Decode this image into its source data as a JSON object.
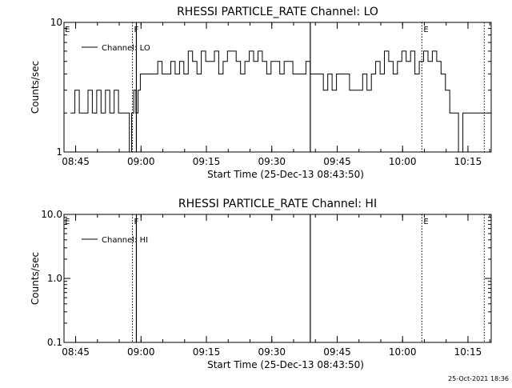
{
  "footer": {
    "timestamp": "25-Oct-2021 18:36"
  },
  "chart_data": [
    {
      "type": "line",
      "title": "RHESSI PARTICLE_RATE Channel: LO",
      "xlabel": "Start Time (25-Dec-13 08:43:50)",
      "ylabel": "Counts/sec",
      "yscale": "log",
      "ylim": [
        1,
        10
      ],
      "xlim_minutes": [
        -1.5,
        96.5
      ],
      "x_tick_labels": [
        "08:45",
        "09:00",
        "09:15",
        "09:30",
        "09:45",
        "10:00",
        "10:15"
      ],
      "x_tick_minutes": [
        1.17,
        16.17,
        31.17,
        46.17,
        61.17,
        76.17,
        91.17
      ],
      "y_tick_labels": [
        "1",
        "10"
      ],
      "y_tick_values": [
        1,
        10
      ],
      "legend": {
        "label": "Channel: LO",
        "position": "top-left"
      },
      "vlines": [
        {
          "x": 14.2,
          "style": "dotted",
          "label": "F"
        },
        {
          "x": 15.1,
          "style": "solid",
          "label": ""
        },
        {
          "x": 55.0,
          "style": "solid",
          "label": ""
        },
        {
          "x": 80.6,
          "style": "dotted",
          "label": "E"
        },
        {
          "x": 94.9,
          "style": "dotted",
          "label": ""
        }
      ],
      "corner_labels": [
        {
          "x": -1.3,
          "label": "E"
        }
      ],
      "series": [
        {
          "name": "Channel: LO",
          "x": [
            0,
            1,
            2,
            3,
            4,
            5,
            6,
            7,
            8,
            9,
            10,
            11,
            12,
            12.5,
            13,
            13.5,
            14,
            14.5,
            15,
            15.5,
            16,
            17,
            18,
            19,
            20,
            21,
            22,
            23,
            24,
            25,
            26,
            27,
            28,
            29,
            30,
            31,
            32,
            33,
            34,
            35,
            36,
            37,
            38,
            39,
            40,
            41,
            42,
            43,
            44,
            45,
            46,
            47,
            48,
            49,
            50,
            51,
            52,
            53,
            54,
            55,
            56,
            57,
            58,
            59,
            60,
            61,
            62,
            63,
            64,
            65,
            66,
            67,
            68,
            69,
            70,
            71,
            72,
            73,
            74,
            75,
            76,
            77,
            78,
            79,
            80,
            81,
            82,
            83,
            84,
            85,
            86,
            87,
            88,
            89,
            90,
            91,
            92,
            93,
            94,
            95
          ],
          "y": [
            2,
            3,
            2,
            2,
            3,
            2,
            3,
            2,
            3,
            2,
            3,
            2,
            2,
            2,
            2,
            1,
            2,
            3,
            2,
            3,
            4,
            4,
            4,
            4,
            5,
            4,
            4,
            5,
            4,
            5,
            4,
            6,
            5,
            4,
            6,
            5,
            5,
            6,
            4,
            5,
            6,
            6,
            5,
            4,
            5,
            6,
            5,
            6,
            5,
            4,
            5,
            5,
            4,
            5,
            5,
            4,
            4,
            4,
            5,
            4,
            4,
            4,
            3,
            4,
            3,
            4,
            4,
            4,
            3,
            3,
            3,
            4,
            3,
            4,
            5,
            4,
            6,
            5,
            4,
            5,
            6,
            5,
            6,
            4,
            5,
            6,
            5,
            6,
            5,
            4,
            3,
            2,
            2,
            1,
            2,
            2,
            2,
            2,
            2,
            2
          ]
        }
      ]
    },
    {
      "type": "line",
      "title": "RHESSI PARTICLE_RATE Channel: HI",
      "xlabel": "Start Time (25-Dec-13 08:43:50)",
      "ylabel": "Counts/sec",
      "yscale": "log",
      "ylim": [
        0.1,
        10
      ],
      "xlim_minutes": [
        -1.5,
        96.5
      ],
      "x_tick_labels": [
        "08:45",
        "09:00",
        "09:15",
        "09:30",
        "09:45",
        "10:00",
        "10:15"
      ],
      "x_tick_minutes": [
        1.17,
        16.17,
        31.17,
        46.17,
        61.17,
        76.17,
        91.17
      ],
      "y_tick_labels": [
        "0.1",
        "1.0",
        "10.0"
      ],
      "y_tick_values": [
        0.1,
        1,
        10
      ],
      "legend": {
        "label": "Channel: HI",
        "position": "top-left"
      },
      "vlines": [
        {
          "x": 14.2,
          "style": "dotted",
          "label": "F"
        },
        {
          "x": 15.1,
          "style": "solid",
          "label": ""
        },
        {
          "x": 55.0,
          "style": "solid",
          "label": ""
        },
        {
          "x": 80.6,
          "style": "dotted",
          "label": "E"
        },
        {
          "x": 94.9,
          "style": "dotted",
          "label": ""
        }
      ],
      "corner_labels": [
        {
          "x": -1.3,
          "label": "E"
        }
      ],
      "series": [
        {
          "name": "Channel: HI",
          "x": [],
          "y": []
        }
      ]
    }
  ]
}
